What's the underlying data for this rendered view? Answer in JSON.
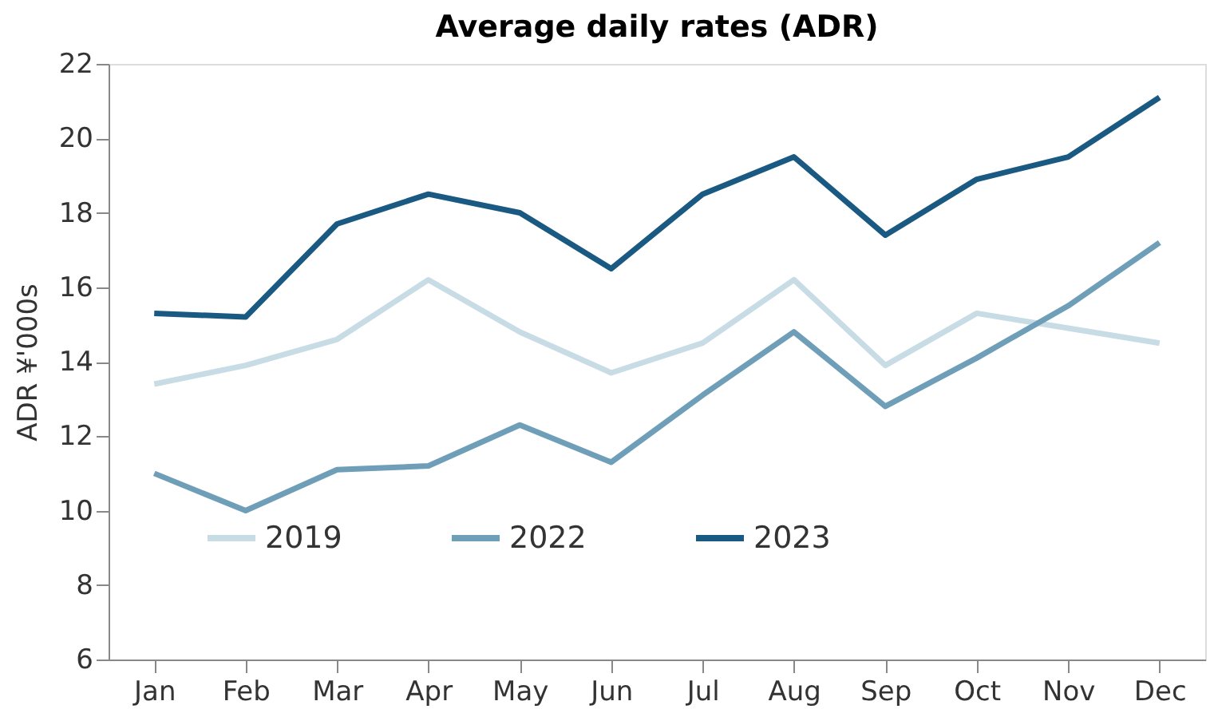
{
  "chart_data": {
    "type": "line",
    "title": "Average daily rates (ADR)",
    "ylabel": "ADR ¥'000s",
    "categories": [
      "Jan",
      "Feb",
      "Mar",
      "Apr",
      "May",
      "Jun",
      "Jul",
      "Aug",
      "Sep",
      "Oct",
      "Nov",
      "Dec"
    ],
    "series": [
      {
        "name": "2019",
        "color": "#c8dce6",
        "values": [
          13.4,
          13.9,
          14.6,
          16.2,
          14.8,
          13.7,
          14.5,
          16.2,
          13.9,
          15.3,
          14.9,
          14.5
        ]
      },
      {
        "name": "2022",
        "color": "#6f9fb8",
        "values": [
          11.0,
          10.0,
          11.1,
          11.2,
          12.3,
          11.3,
          13.1,
          14.8,
          12.8,
          14.1,
          15.5,
          17.2
        ]
      },
      {
        "name": "2023",
        "color": "#1a5a82",
        "values": [
          15.3,
          15.2,
          17.7,
          18.5,
          18.0,
          16.5,
          18.5,
          19.5,
          17.4,
          18.9,
          19.5,
          21.1
        ]
      }
    ],
    "ylim": [
      6,
      22
    ],
    "yticks": [
      6,
      8,
      10,
      12,
      14,
      16,
      18,
      20,
      22
    ],
    "grid": false,
    "legend": "bottom",
    "marker": "none",
    "line_style": "solid"
  }
}
